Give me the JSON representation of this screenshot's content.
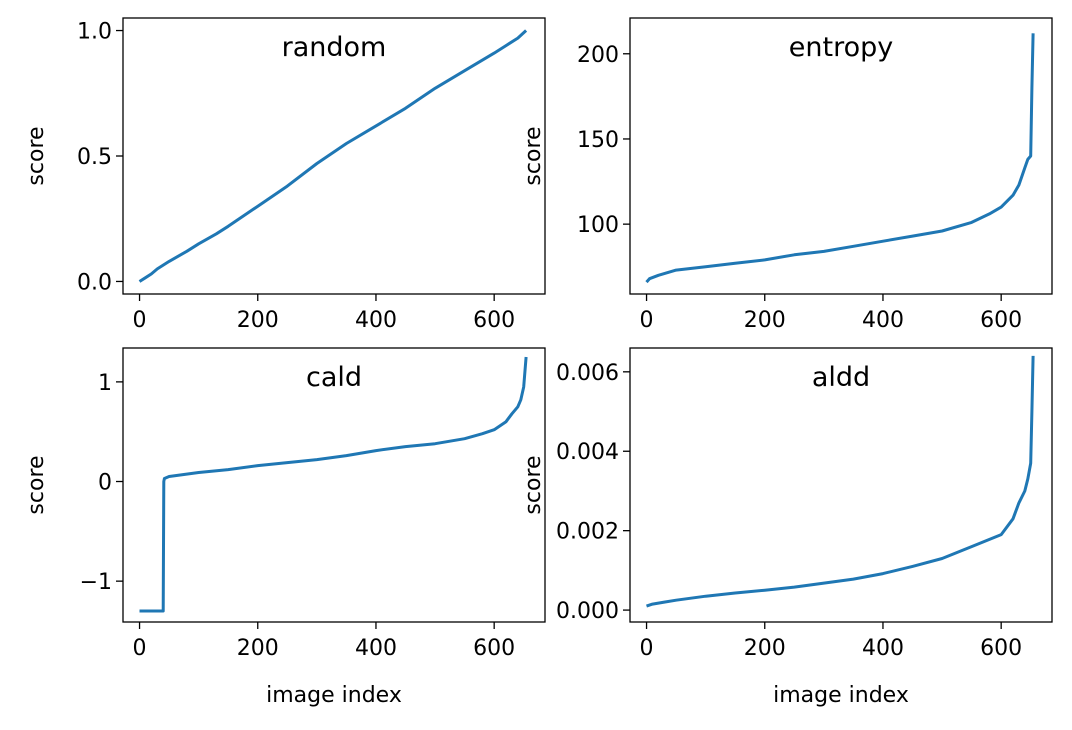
{
  "colors": {
    "series": "#1f77b4",
    "axes": "#000000",
    "background": "#ffffff"
  },
  "chart_data": [
    {
      "type": "line",
      "title": "random",
      "xlabel": "",
      "ylabel": "score",
      "xlim": [
        -28,
        686
      ],
      "ylim": [
        -0.05,
        1.05
      ],
      "xticks": [
        0,
        200,
        400,
        600
      ],
      "xtick_labels": [
        "0",
        "200",
        "400",
        "600"
      ],
      "yticks": [
        0.0,
        0.5,
        1.0
      ],
      "ytick_labels": [
        "0.0",
        "0.5",
        "1.0"
      ],
      "legend": "none",
      "grid": false,
      "series": [
        {
          "x": [
            0,
            10,
            20,
            30,
            50,
            80,
            100,
            130,
            150,
            200,
            250,
            300,
            350,
            400,
            450,
            500,
            550,
            600,
            620,
            640,
            654
          ],
          "y": [
            0.0,
            0.015,
            0.03,
            0.05,
            0.08,
            0.12,
            0.15,
            0.19,
            0.22,
            0.3,
            0.38,
            0.47,
            0.55,
            0.62,
            0.69,
            0.77,
            0.84,
            0.91,
            0.94,
            0.97,
            1.0
          ]
        }
      ]
    },
    {
      "type": "line",
      "title": "entropy",
      "xlabel": "",
      "ylabel": "score",
      "xlim": [
        -28,
        686
      ],
      "ylim": [
        59,
        221
      ],
      "xticks": [
        0,
        200,
        400,
        600
      ],
      "xtick_labels": [
        "0",
        "200",
        "400",
        "600"
      ],
      "yticks": [
        100,
        150,
        200
      ],
      "ytick_labels": [
        "100",
        "150",
        "200"
      ],
      "legend": "none",
      "grid": false,
      "series": [
        {
          "x": [
            0,
            5,
            20,
            50,
            100,
            150,
            200,
            250,
            300,
            350,
            400,
            450,
            500,
            550,
            580,
            600,
            620,
            630,
            640,
            645,
            650,
            652,
            654
          ],
          "y": [
            66,
            68,
            70,
            73,
            75,
            77,
            79,
            82,
            84,
            87,
            90,
            93,
            96,
            101,
            106,
            110,
            117,
            123,
            133,
            138,
            140,
            180,
            212
          ]
        }
      ]
    },
    {
      "type": "line",
      "title": "cald",
      "xlabel": "image index",
      "ylabel": "score",
      "xlim": [
        -28,
        686
      ],
      "ylim": [
        -1.41,
        1.34
      ],
      "xticks": [
        0,
        200,
        400,
        600
      ],
      "xtick_labels": [
        "0",
        "200",
        "400",
        "600"
      ],
      "yticks": [
        -1,
        0,
        1
      ],
      "ytick_labels": [
        "−1",
        "0",
        "1"
      ],
      "legend": "none",
      "grid": false,
      "series": [
        {
          "x": [
            0,
            40,
            41,
            42,
            50,
            100,
            150,
            200,
            250,
            300,
            350,
            400,
            450,
            500,
            550,
            580,
            600,
            620,
            630,
            640,
            645,
            650,
            652,
            654
          ],
          "y": [
            -1.3,
            -1.3,
            0.0,
            0.03,
            0.05,
            0.09,
            0.12,
            0.16,
            0.19,
            0.22,
            0.26,
            0.31,
            0.35,
            0.38,
            0.43,
            0.48,
            0.52,
            0.6,
            0.68,
            0.75,
            0.82,
            0.95,
            1.1,
            1.25
          ]
        }
      ]
    },
    {
      "type": "line",
      "title": "aldd",
      "xlabel": "image index",
      "ylabel": "score",
      "xlim": [
        -28,
        686
      ],
      "ylim": [
        -0.0003,
        0.0066
      ],
      "xticks": [
        0,
        200,
        400,
        600
      ],
      "xtick_labels": [
        "0",
        "200",
        "400",
        "600"
      ],
      "yticks": [
        0.0,
        0.002,
        0.004,
        0.006
      ],
      "ytick_labels": [
        "0.000",
        "0.002",
        "0.004",
        "0.006"
      ],
      "legend": "none",
      "grid": false,
      "series": [
        {
          "x": [
            0,
            10,
            30,
            50,
            100,
            150,
            200,
            250,
            300,
            350,
            400,
            450,
            500,
            550,
            600,
            620,
            630,
            640,
            645,
            650,
            652,
            654
          ],
          "y": [
            0.0001,
            0.00015,
            0.0002,
            0.00025,
            0.00035,
            0.00043,
            0.0005,
            0.00058,
            0.00068,
            0.00078,
            0.00092,
            0.0011,
            0.0013,
            0.0016,
            0.0019,
            0.0023,
            0.0027,
            0.003,
            0.0033,
            0.0037,
            0.005,
            0.0064
          ]
        }
      ]
    }
  ]
}
